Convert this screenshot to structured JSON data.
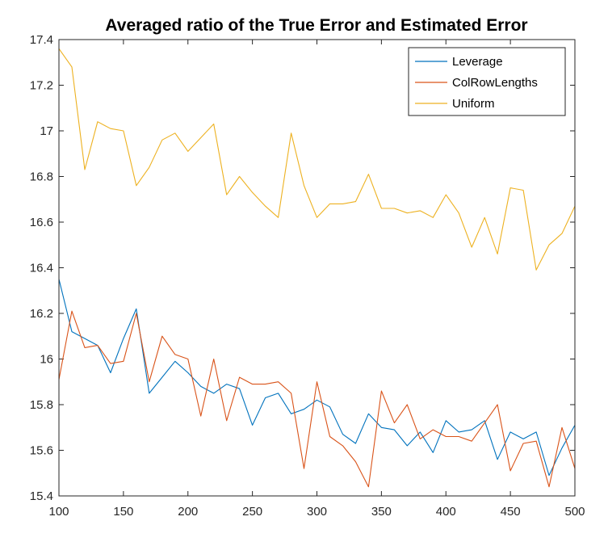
{
  "chart_data": {
    "type": "line",
    "title": "Averaged ratio of the True Error and Estimated Error",
    "xlabel": "",
    "ylabel": "",
    "xlim": [
      100,
      500
    ],
    "ylim": [
      15.4,
      17.4
    ],
    "xticks": [
      100,
      150,
      200,
      250,
      300,
      350,
      400,
      450,
      500
    ],
    "yticks": [
      15.4,
      15.6,
      15.8,
      16,
      16.2,
      16.4,
      16.6,
      16.8,
      17,
      17.2,
      17.4
    ],
    "xtick_labels": [
      "100",
      "150",
      "200",
      "250",
      "300",
      "350",
      "400",
      "450",
      "500"
    ],
    "ytick_labels": [
      "15.4",
      "15.6",
      "15.8",
      "16",
      "16.2",
      "16.4",
      "16.6",
      "16.8",
      "17",
      "17.2",
      "17.4"
    ],
    "legend_position": "top-right",
    "x": [
      100,
      110,
      120,
      130,
      140,
      150,
      160,
      170,
      180,
      190,
      200,
      210,
      220,
      230,
      240,
      250,
      260,
      270,
      280,
      290,
      300,
      310,
      320,
      330,
      340,
      350,
      360,
      370,
      380,
      390,
      400,
      410,
      420,
      430,
      440,
      450,
      460,
      470,
      480,
      490,
      500
    ],
    "series": [
      {
        "name": "Leverage",
        "color": "#0072BD",
        "values": [
          16.35,
          16.12,
          16.09,
          16.06,
          15.94,
          16.09,
          16.22,
          15.85,
          15.92,
          15.99,
          15.94,
          15.88,
          15.85,
          15.89,
          15.87,
          15.71,
          15.83,
          15.85,
          15.76,
          15.78,
          15.82,
          15.79,
          15.67,
          15.63,
          15.76,
          15.7,
          15.69,
          15.62,
          15.68,
          15.59,
          15.73,
          15.68,
          15.69,
          15.73,
          15.56,
          15.68,
          15.65,
          15.68,
          15.49,
          15.61,
          15.71
        ]
      },
      {
        "name": "ColRowLengths",
        "color": "#D95319",
        "values": [
          15.91,
          16.21,
          16.05,
          16.06,
          15.98,
          15.99,
          16.2,
          15.9,
          16.1,
          16.02,
          16.0,
          15.75,
          16.0,
          15.73,
          15.92,
          15.89,
          15.89,
          15.9,
          15.85,
          15.52,
          15.9,
          15.66,
          15.62,
          15.55,
          15.44,
          15.86,
          15.72,
          15.8,
          15.65,
          15.69,
          15.66,
          15.66,
          15.64,
          15.72,
          15.8,
          15.51,
          15.63,
          15.64,
          15.44,
          15.7,
          15.52
        ]
      },
      {
        "name": "Uniform",
        "color": "#EDB120",
        "values": [
          17.36,
          17.28,
          16.83,
          17.04,
          17.01,
          17.0,
          16.76,
          16.84,
          16.96,
          16.99,
          16.91,
          16.97,
          17.03,
          16.72,
          16.8,
          16.73,
          16.67,
          16.62,
          16.99,
          16.76,
          16.62,
          16.68,
          16.68,
          16.69,
          16.81,
          16.66,
          16.66,
          16.64,
          16.65,
          16.62,
          16.72,
          16.64,
          16.49,
          16.62,
          16.46,
          16.75,
          16.74,
          16.39,
          16.5,
          16.55,
          16.67
        ]
      }
    ]
  }
}
